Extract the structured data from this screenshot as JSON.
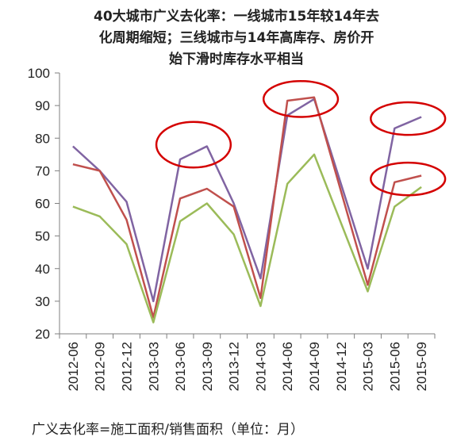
{
  "chart_data": {
    "type": "line",
    "title": "40大城市广义去化率：一线城市15年较14年去化周期缩短；三线城市与14年高库存、房价开始下滑时库存水平相当",
    "categories": [
      "2012-06",
      "2012-09",
      "2012-12",
      "2013-03",
      "2013-06",
      "2013-09",
      "2013-12",
      "2014-03",
      "2014-06",
      "2014-09",
      "2014-12",
      "2015-03",
      "2015-06",
      "2015-09"
    ],
    "ylim": [
      20,
      100
    ],
    "yticks": [
      20,
      30,
      40,
      50,
      60,
      70,
      80,
      90,
      100
    ],
    "grid": false,
    "series": [
      {
        "color": "#8064a2",
        "values": [
          77.5,
          70,
          60.5,
          30,
          73.5,
          77.5,
          60,
          37,
          87,
          92,
          null,
          40,
          83,
          86.5
        ]
      },
      {
        "color": "#c0504d",
        "values": [
          72,
          70,
          55,
          25,
          61.5,
          64.5,
          59,
          31,
          91.5,
          92.5,
          null,
          35,
          66.5,
          68.5
        ]
      },
      {
        "color": "#9bbb59",
        "values": [
          59,
          56,
          47.5,
          23.5,
          54.5,
          60,
          50.5,
          28.5,
          66,
          75,
          null,
          33,
          59,
          65
        ]
      }
    ],
    "footnote": "广义去化率=施工面积/销售面积（单位：月）",
    "annotations": [
      "red ellipse highlight around 2013-06/2013-09 peak",
      "red ellipse highlight around 2014-06/2014-09 peak",
      "red ellipse highlight around 2015-06/2015-09 top series",
      "red ellipse highlight around 2015-06/2015-09 lower series"
    ]
  },
  "title_lines": [
    "40大城市广义去化率：一线城市15年较14年去",
    "化周期缩短；三线城市与14年高库存、房价开",
    "始下滑时库存水平相当"
  ]
}
